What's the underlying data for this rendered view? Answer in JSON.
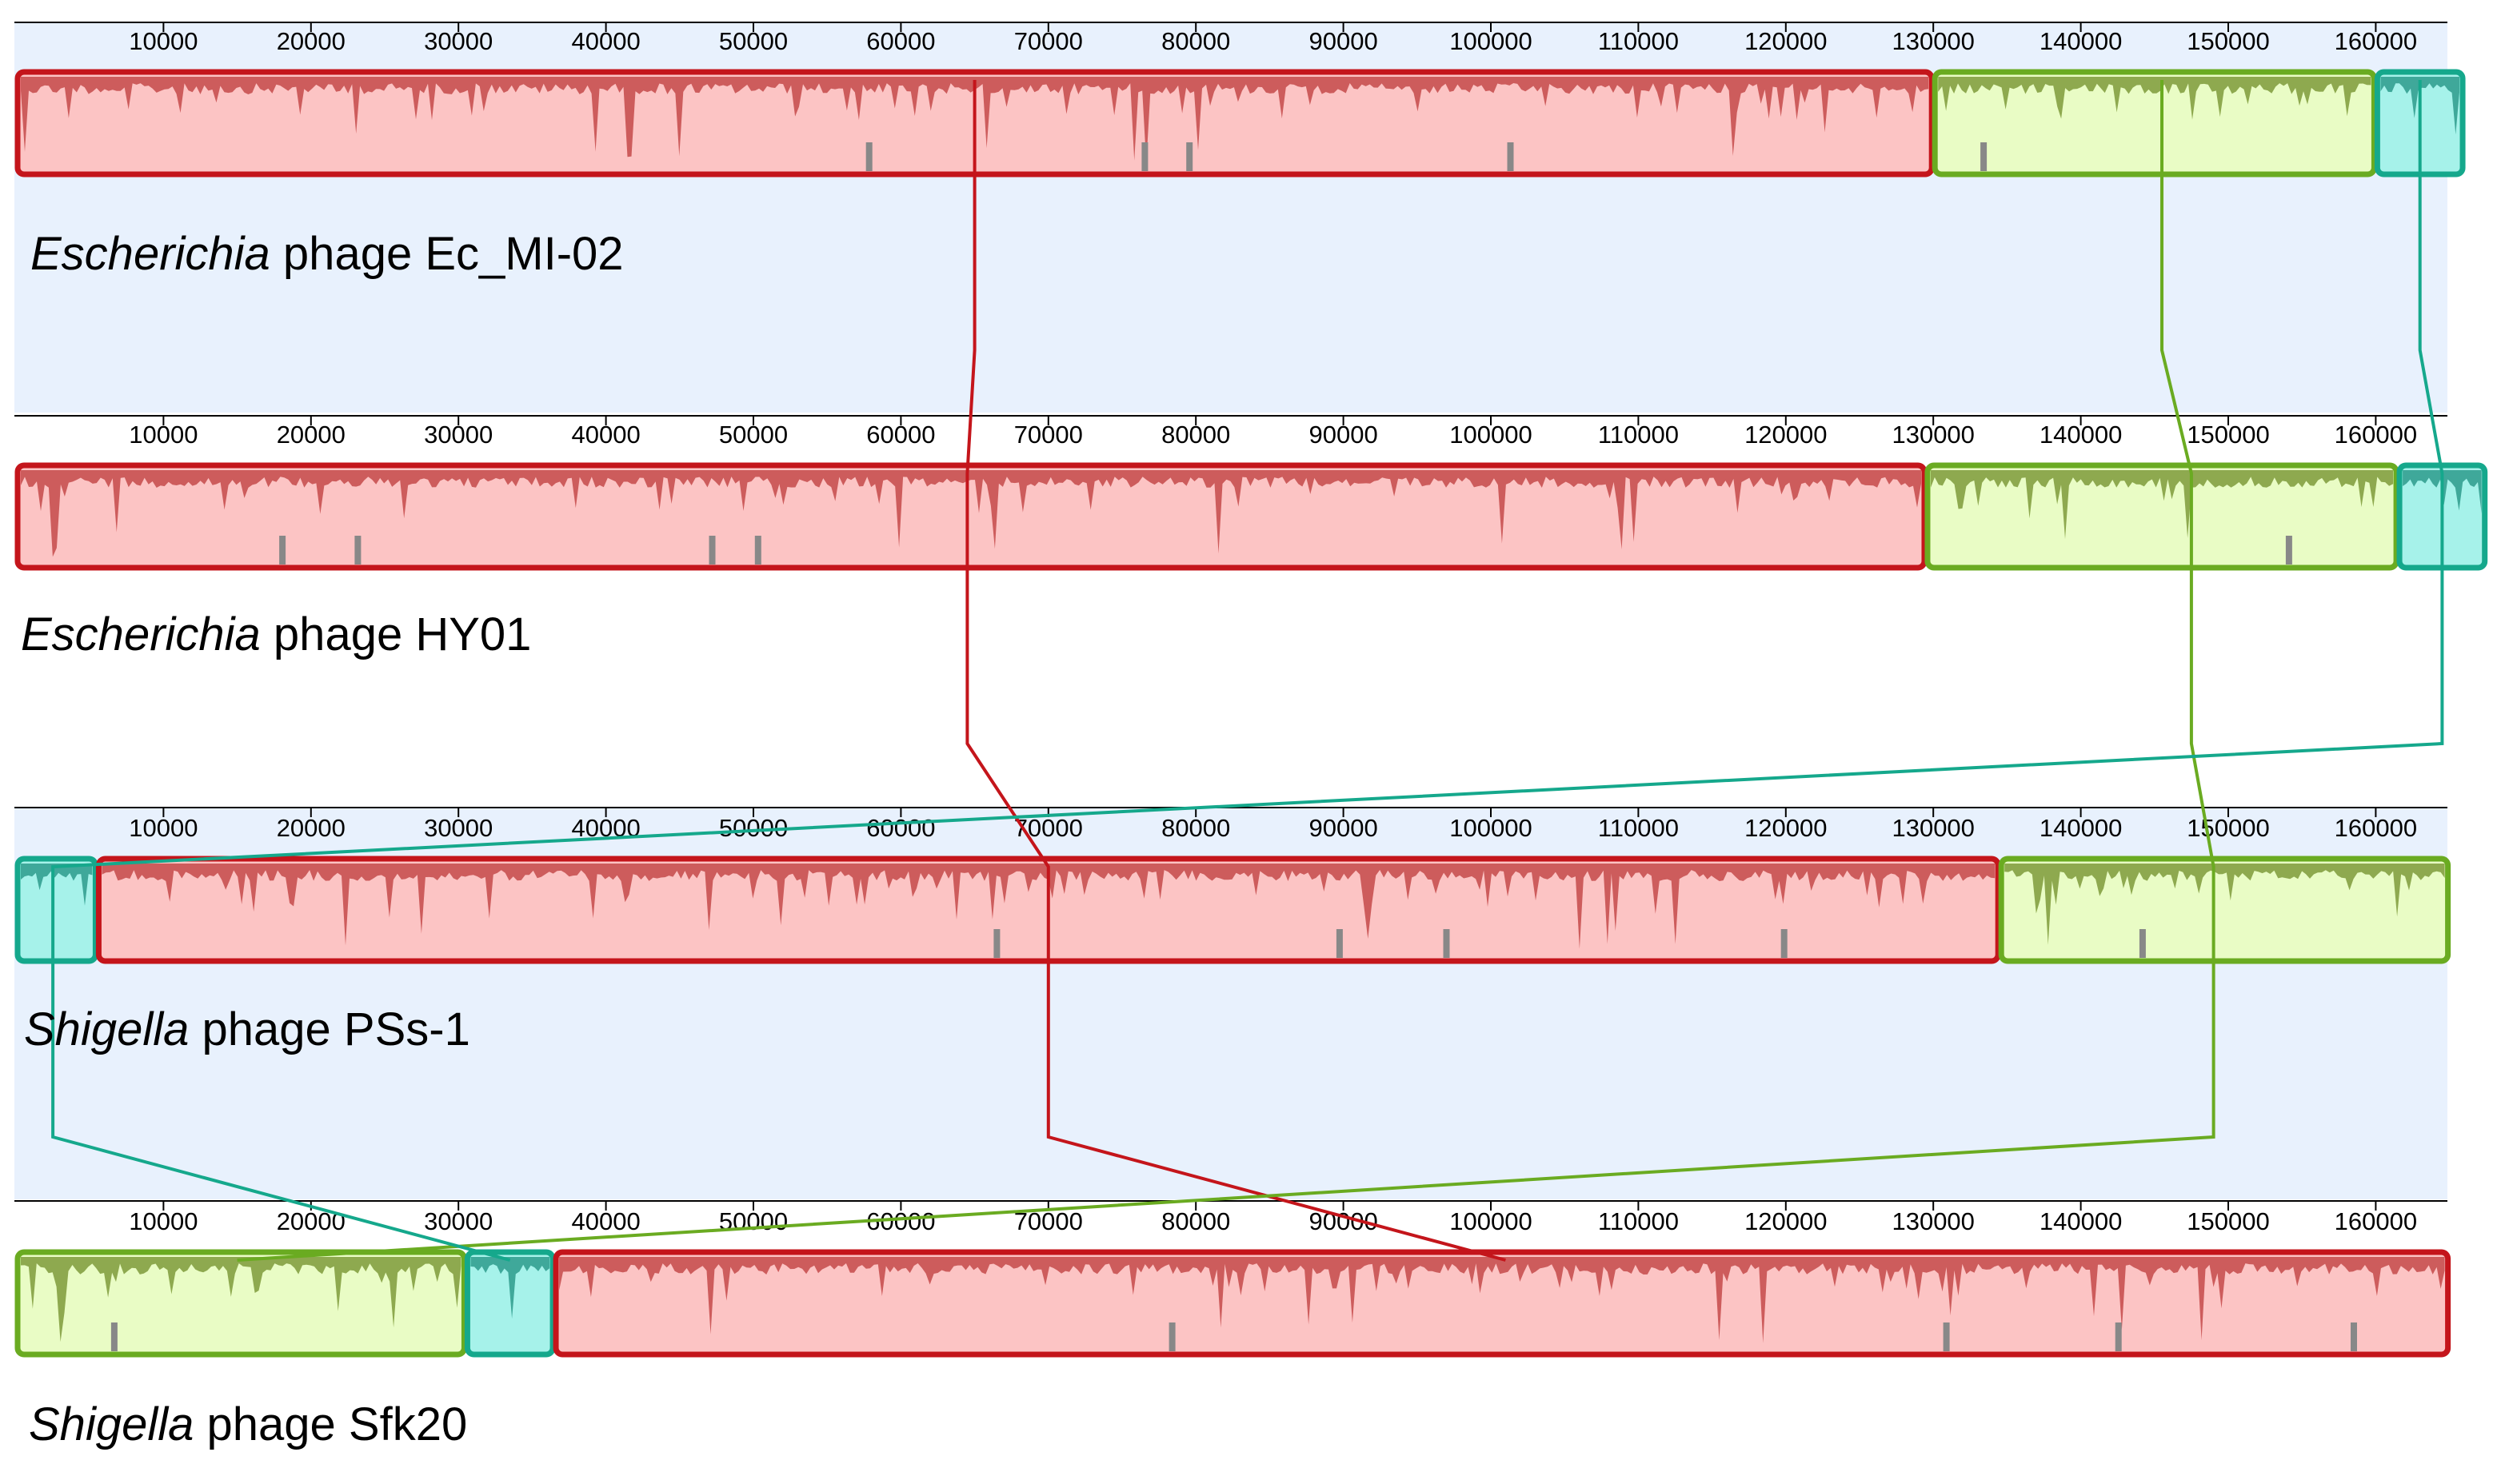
{
  "figure": {
    "type": "progressive-mauve-alignment",
    "axis_ticks": [
      10000,
      20000,
      30000,
      40000,
      50000,
      60000,
      70000,
      80000,
      90000,
      100000,
      110000,
      120000,
      130000,
      140000,
      150000,
      160000
    ],
    "axis_max": 165000,
    "colors": {
      "band_background": "#e8f1fd",
      "red_block_fill": "#fcc4c4",
      "red_block_border": "#c4151b",
      "red_block_profile": "#c44a4a",
      "green_block_fill": "#e9fcc5",
      "green_block_border": "#6aab21",
      "green_block_profile": "#7e9a3a",
      "teal_block_fill": "#a6f2ea",
      "teal_block_border": "#15a88c",
      "teal_block_profile": "#2d9b8c",
      "gap_gray": "#888888"
    }
  },
  "genomes": [
    {
      "genus": "Escherichia",
      "rest": " phage Ec_MI-02",
      "blocks": [
        {
          "color": "red",
          "start": 0,
          "end": 130000
        },
        {
          "color": "green",
          "start": 130000,
          "end": 160000
        },
        {
          "color": "teal",
          "start": 160000,
          "end": 166000
        }
      ]
    },
    {
      "genus": "Escherichia",
      "rest": " phage HY01",
      "blocks": [
        {
          "color": "red",
          "start": 0,
          "end": 129500
        },
        {
          "color": "green",
          "start": 129500,
          "end": 161500
        },
        {
          "color": "teal",
          "start": 161500,
          "end": 167500
        }
      ]
    },
    {
      "genus": "Shigella",
      "rest": " phage PSs-1",
      "blocks": [
        {
          "color": "teal",
          "start": 0,
          "end": 5500
        },
        {
          "color": "red",
          "start": 5500,
          "end": 134500
        },
        {
          "color": "green",
          "start": 134500,
          "end": 165000
        }
      ]
    },
    {
      "genus": "Shigella",
      "rest": " phage Sfk20",
      "blocks": [
        {
          "color": "green",
          "start": 0,
          "end": 30500
        },
        {
          "color": "teal",
          "start": 30500,
          "end": 36500
        },
        {
          "color": "red",
          "start": 36500,
          "end": 165000
        }
      ]
    }
  ],
  "connectors": [
    {
      "color": "red",
      "positions": [
        65000,
        64500,
        70000,
        101000
      ]
    },
    {
      "color": "green",
      "positions": [
        145500,
        147500,
        149000,
        15000
      ]
    },
    {
      "color": "teal",
      "positions": [
        163000,
        164500,
        2500,
        33500
      ]
    }
  ]
}
